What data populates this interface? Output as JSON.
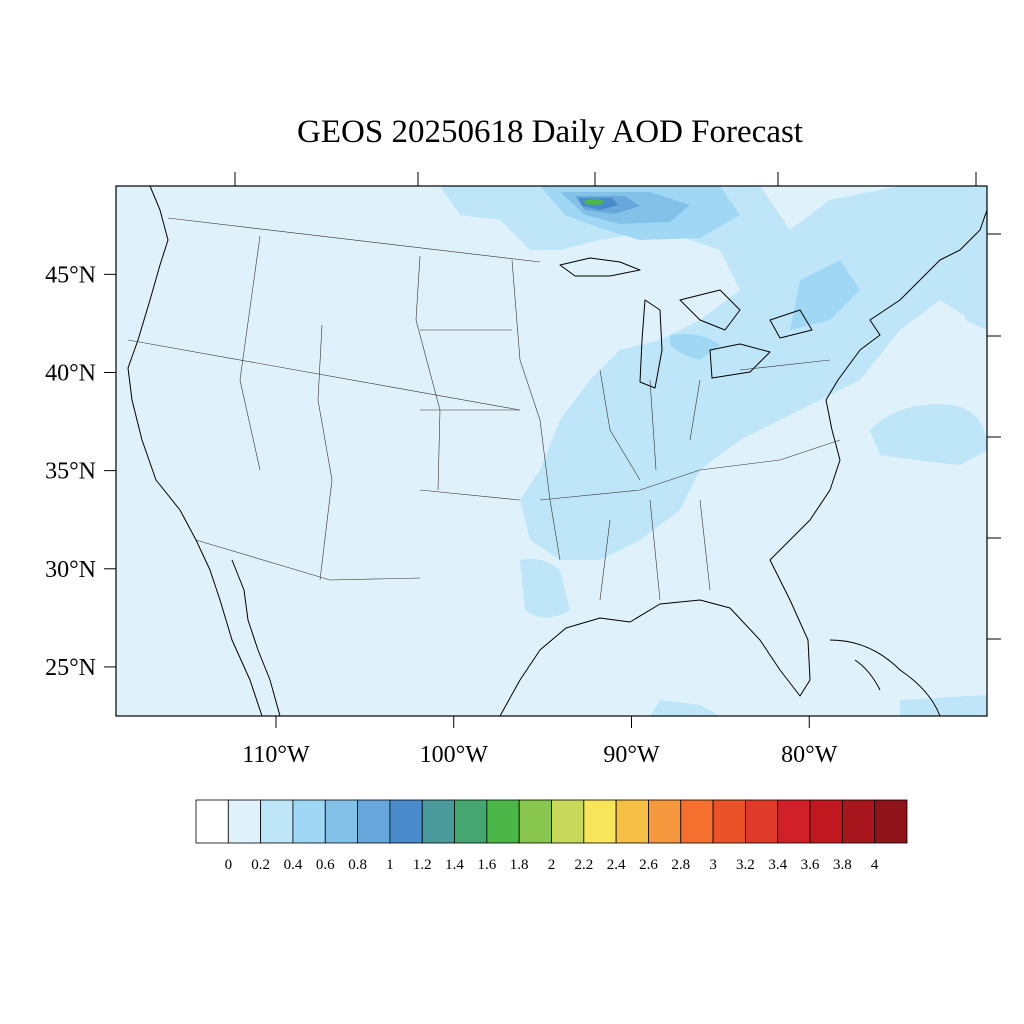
{
  "title": "GEOS 20250618 Daily AOD Forecast",
  "map": {
    "lon_range": [
      -119.0,
      -70.0
    ],
    "lat_range": [
      22.5,
      49.5
    ],
    "background_color": "#dff1fb",
    "lon_ticks": [
      {
        "value": -110,
        "label": "110°W"
      },
      {
        "value": -100,
        "label": "100°W"
      },
      {
        "value": -90,
        "label": "90°W"
      },
      {
        "value": -80,
        "label": "80°W"
      }
    ],
    "lat_ticks": [
      {
        "value": 45,
        "label": "45°N"
      },
      {
        "value": 40,
        "label": "40°N"
      },
      {
        "value": 35,
        "label": "35°N"
      },
      {
        "value": 30,
        "label": "30°N"
      },
      {
        "value": 25,
        "label": "25°N"
      }
    ]
  },
  "colorbar": {
    "labels": [
      "0",
      "0.2",
      "0.4",
      "0.6",
      "0.8",
      "1",
      "1.2",
      "1.4",
      "1.6",
      "1.8",
      "2",
      "2.2",
      "2.4",
      "2.6",
      "2.8",
      "3",
      "3.2",
      "3.4",
      "3.6",
      "3.8",
      "4"
    ],
    "colors": [
      "#ffffff",
      "#dff1fb",
      "#bfe6f8",
      "#a0d7f4",
      "#84c1e8",
      "#67a7dc",
      "#4a8bcb",
      "#4a9a9c",
      "#45a671",
      "#4cb648",
      "#88c64d",
      "#c7d95a",
      "#f7e65b",
      "#f6c047",
      "#f6983d",
      "#f56f2f",
      "#ea5329",
      "#df3b28",
      "#d22029",
      "#c1191f",
      "#a8171d",
      "#8e141a"
    ]
  }
}
